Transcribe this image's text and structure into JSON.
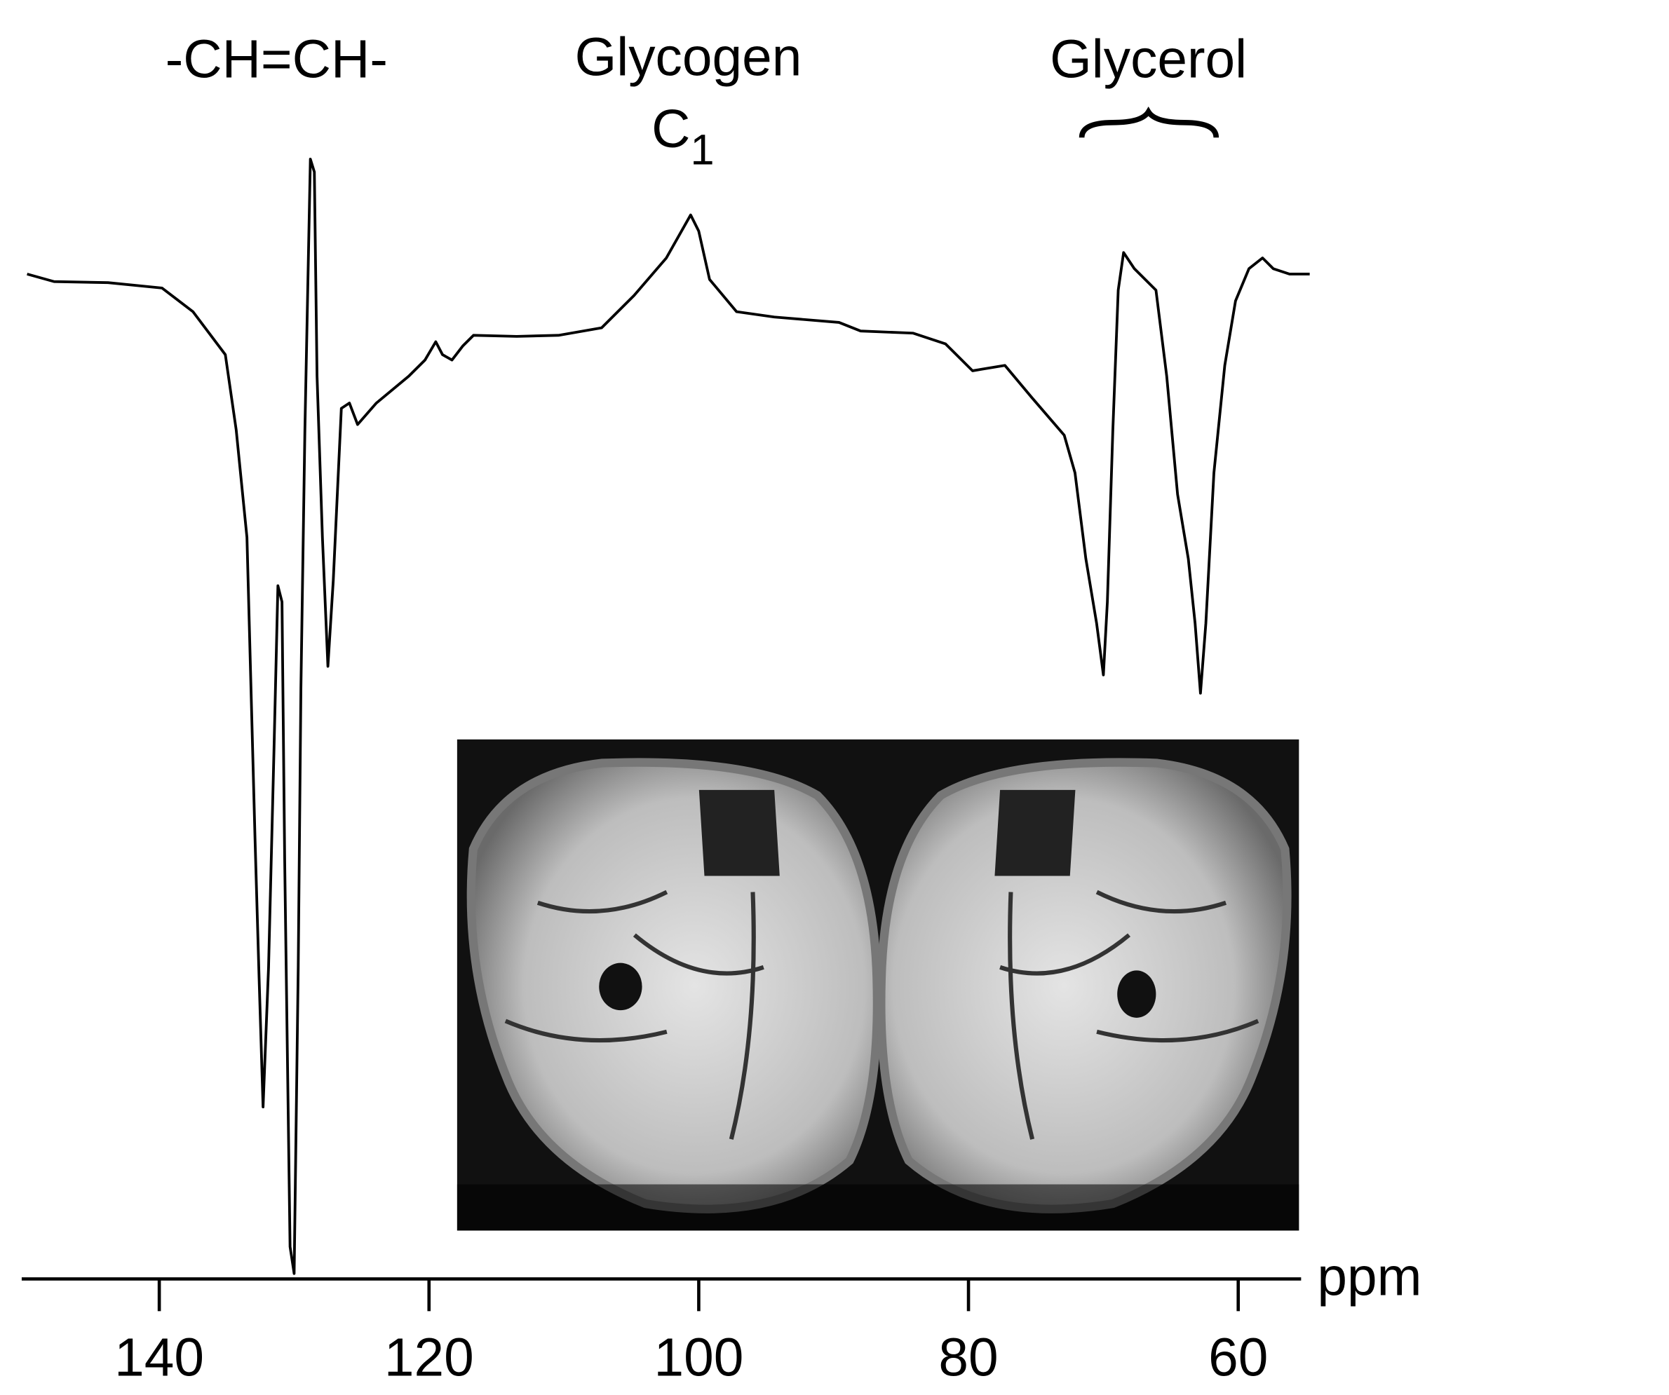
{
  "chart_data": {
    "type": "line",
    "color": "#000000",
    "annotations": [
      {
        "text": "-CH=CH-"
      },
      {
        "text": "Glycogen"
      },
      {
        "text": "C",
        "subscript": "1"
      },
      {
        "text": "Glycerol"
      }
    ],
    "xlabel": "ppm",
    "xlim": [
      150.2,
      54.7
    ],
    "xticks": [
      140,
      120,
      100,
      80,
      60
    ],
    "ylim": [
      0,
      105
    ],
    "x": [
      149.8,
      147.8,
      143.8,
      139.8,
      137.5,
      135.1,
      134.3,
      133.5,
      132.9,
      132.6,
      132.3,
      131.9,
      131.5,
      131.2,
      130.9,
      130.7,
      130.3,
      130.0,
      129.7,
      129.5,
      129.2,
      128.8,
      128.5,
      128.3,
      127.9,
      127.5,
      127.1,
      126.5,
      125.9,
      125.3,
      123.9,
      121.5,
      120.3,
      119.5,
      119.0,
      118.3,
      117.5,
      116.7,
      113.5,
      110.4,
      107.2,
      104.8,
      102.4,
      100.6,
      100.0,
      99.2,
      97.2,
      94.4,
      89.6,
      88.0,
      84.1,
      81.7,
      79.7,
      77.3,
      75.3,
      72.9,
      72.1,
      71.3,
      70.5,
      70.0,
      69.7,
      69.3,
      68.9,
      68.5,
      67.7,
      66.1,
      65.3,
      64.5,
      63.7,
      63.2,
      62.8,
      62.4,
      61.8,
      61.0,
      60.2,
      59.2,
      58.2,
      57.4,
      56.2,
      54.7
    ],
    "values": [
      93.5,
      92.8,
      92.7,
      92.2,
      90.0,
      86.0,
      79.0,
      69.0,
      41.0,
      28.0,
      16.0,
      29.0,
      49.0,
      64.5,
      63.0,
      39.0,
      3.0,
      0.5,
      29.0,
      55.0,
      79.0,
      104.2,
      103.0,
      84.0,
      69.0,
      57.0,
      65.0,
      81.0,
      81.5,
      79.5,
      81.5,
      84.0,
      85.5,
      87.2,
      86.0,
      85.5,
      86.8,
      87.8,
      87.7,
      87.8,
      88.5,
      91.5,
      95.0,
      99.0,
      97.5,
      93.0,
      90.0,
      89.5,
      89.0,
      88.2,
      88.0,
      87.0,
      84.5,
      85.0,
      82.0,
      78.5,
      75.0,
      67.0,
      61.0,
      56.2,
      63.0,
      79.0,
      92.0,
      95.5,
      94.0,
      92.0,
      84.0,
      73.0,
      67.0,
      61.0,
      54.5,
      61.0,
      75.0,
      85.0,
      91.0,
      94.0,
      95.0,
      94.0,
      93.5,
      93.5
    ]
  }
}
